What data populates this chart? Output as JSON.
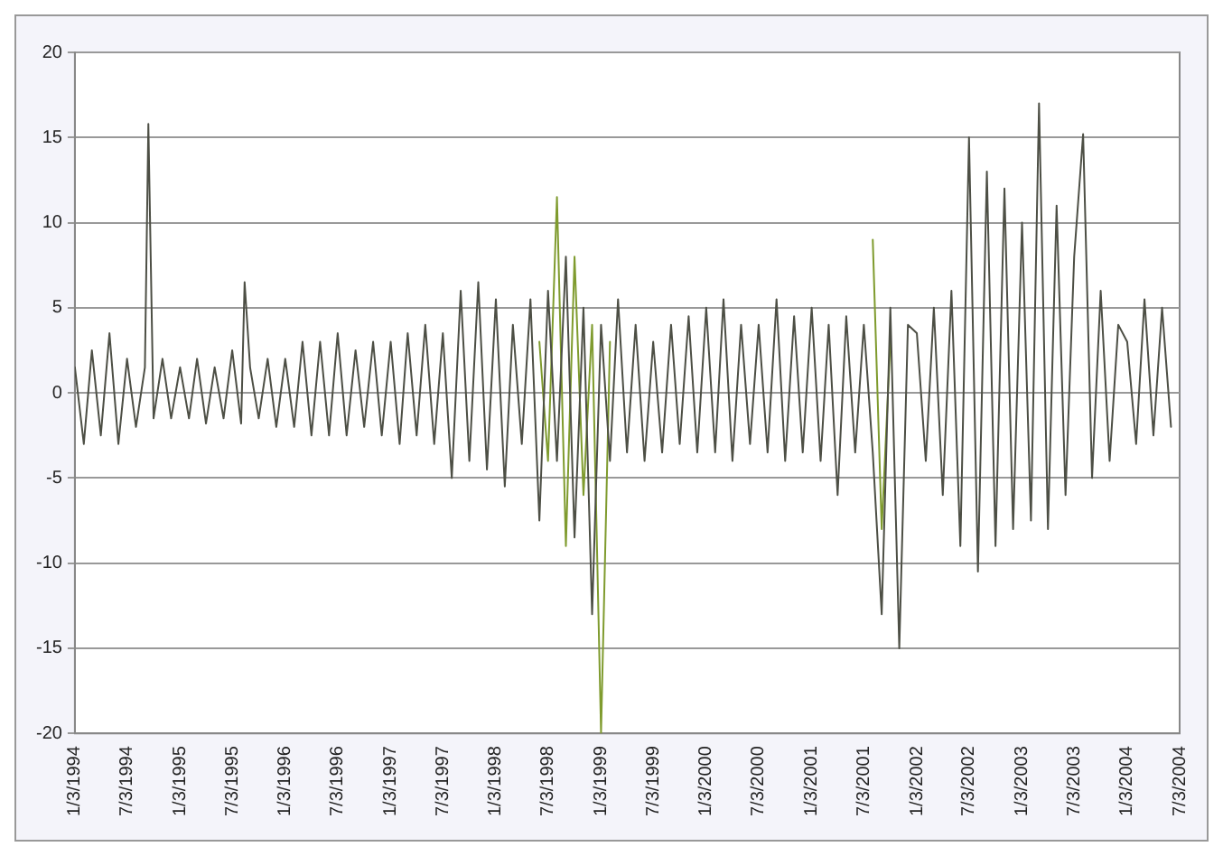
{
  "chart_data": {
    "type": "line",
    "xlim": [
      "1994-01-03",
      "2004-07-03"
    ],
    "ylim": [
      -20,
      20
    ],
    "yticks": [
      -20,
      -15,
      -10,
      -5,
      0,
      5,
      10,
      15,
      20
    ],
    "grid": "y",
    "legend": false,
    "marker": "none",
    "line_style": "solid",
    "xticks": [
      {
        "value": "1994-01-03",
        "label": "1/3/1994"
      },
      {
        "value": "1994-07-03",
        "label": "7/3/1994"
      },
      {
        "value": "1995-01-03",
        "label": "1/3/1995"
      },
      {
        "value": "1995-07-03",
        "label": "7/3/1995"
      },
      {
        "value": "1996-01-03",
        "label": "1/3/1996"
      },
      {
        "value": "1996-07-03",
        "label": "7/3/1996"
      },
      {
        "value": "1997-01-03",
        "label": "1/3/1997"
      },
      {
        "value": "1997-07-03",
        "label": "7/3/1997"
      },
      {
        "value": "1998-01-03",
        "label": "1/3/1998"
      },
      {
        "value": "1998-07-03",
        "label": "7/3/1998"
      },
      {
        "value": "1999-01-03",
        "label": "1/3/1999"
      },
      {
        "value": "1999-07-03",
        "label": "7/3/1999"
      },
      {
        "value": "2000-01-03",
        "label": "1/3/2000"
      },
      {
        "value": "2000-07-03",
        "label": "7/3/2000"
      },
      {
        "value": "2001-01-03",
        "label": "1/3/2001"
      },
      {
        "value": "2001-07-03",
        "label": "7/3/2001"
      },
      {
        "value": "2002-01-03",
        "label": "1/3/2002"
      },
      {
        "value": "2002-07-03",
        "label": "7/3/2002"
      },
      {
        "value": "2003-01-03",
        "label": "1/3/2003"
      },
      {
        "value": "2003-07-03",
        "label": "7/3/2003"
      },
      {
        "value": "2004-01-03",
        "label": "1/3/2004"
      },
      {
        "value": "2004-07-03",
        "label": "7/3/2004"
      }
    ],
    "series": [
      {
        "color": "#4d4f45",
        "x": [
          "1994-01-03",
          "1994-02-03",
          "1994-03-03",
          "1994-04-03",
          "1994-05-03",
          "1994-06-03",
          "1994-07-03",
          "1994-08-03",
          "1994-09-03",
          "1994-09-15",
          "1994-10-03",
          "1994-11-03",
          "1994-12-03",
          "1995-01-03",
          "1995-02-03",
          "1995-03-03",
          "1995-04-03",
          "1995-05-03",
          "1995-06-03",
          "1995-07-03",
          "1995-08-03",
          "1995-08-15",
          "1995-09-03",
          "1995-10-03",
          "1995-11-03",
          "1995-12-03",
          "1996-01-03",
          "1996-02-03",
          "1996-03-03",
          "1996-04-03",
          "1996-05-03",
          "1996-06-03",
          "1996-07-03",
          "1996-08-03",
          "1996-09-03",
          "1996-10-03",
          "1996-11-03",
          "1996-12-03",
          "1997-01-03",
          "1997-02-03",
          "1997-03-03",
          "1997-04-03",
          "1997-05-03",
          "1997-06-03",
          "1997-07-03",
          "1997-08-03",
          "1997-09-03",
          "1997-10-03",
          "1997-11-03",
          "1997-12-03",
          "1998-01-03",
          "1998-02-03",
          "1998-03-03",
          "1998-04-03",
          "1998-05-03",
          "1998-06-03",
          "1998-07-03",
          "1998-08-03",
          "1998-09-03",
          "1998-10-03",
          "1998-11-03",
          "1998-12-03",
          "1999-01-03",
          "1999-02-03",
          "1999-03-03",
          "1999-04-03",
          "1999-05-03",
          "1999-06-03",
          "1999-07-03",
          "1999-08-03",
          "1999-09-03",
          "1999-10-03",
          "1999-11-03",
          "1999-12-03",
          "2000-01-03",
          "2000-02-03",
          "2000-03-03",
          "2000-04-03",
          "2000-05-03",
          "2000-06-03",
          "2000-07-03",
          "2000-08-03",
          "2000-09-03",
          "2000-10-03",
          "2000-11-03",
          "2000-12-03",
          "2001-01-03",
          "2001-02-03",
          "2001-03-03",
          "2001-04-03",
          "2001-05-03",
          "2001-06-03",
          "2001-07-03",
          "2001-08-03",
          "2001-09-03",
          "2001-10-03",
          "2001-11-03",
          "2001-12-03",
          "2002-01-03",
          "2002-02-03",
          "2002-03-03",
          "2002-04-03",
          "2002-05-03",
          "2002-06-03",
          "2002-07-03",
          "2002-08-03",
          "2002-09-03",
          "2002-10-03",
          "2002-11-03",
          "2002-12-03",
          "2003-01-03",
          "2003-02-03",
          "2003-03-03",
          "2003-04-03",
          "2003-05-03",
          "2003-06-03",
          "2003-07-03",
          "2003-08-03",
          "2003-09-03",
          "2003-10-03",
          "2003-11-03",
          "2003-12-03",
          "2004-01-03",
          "2004-02-03",
          "2004-03-03",
          "2004-04-03",
          "2004-05-03",
          "2004-06-03"
        ],
        "values": [
          1.5,
          -3,
          2.5,
          -2.5,
          3.5,
          -3,
          2,
          -2,
          1.5,
          15.8,
          -1.5,
          2,
          -1.5,
          1.5,
          -1.5,
          2,
          -1.8,
          1.5,
          -1.5,
          2.5,
          -1.8,
          6.5,
          1.5,
          -1.5,
          2,
          -2,
          2,
          -2,
          3,
          -2.5,
          3,
          -2.5,
          3.5,
          -2.5,
          2.5,
          -2,
          3,
          -2.5,
          3,
          -3,
          3.5,
          -2.5,
          4,
          -3,
          3.5,
          -5,
          6,
          -4,
          6.5,
          -4.5,
          5.5,
          -5.5,
          4,
          -3,
          5.5,
          -7.5,
          6,
          -4,
          8,
          -8.5,
          5,
          -13,
          4,
          -4,
          5.5,
          -3.5,
          4,
          -4,
          3,
          -3.5,
          4,
          -3,
          4.5,
          -3.5,
          5,
          -3.5,
          5.5,
          -4,
          4,
          -3,
          4,
          -3.5,
          5.5,
          -4,
          4.5,
          -3.5,
          5,
          -4,
          4,
          -6,
          4.5,
          -3.5,
          4,
          -3.5,
          -13,
          5,
          -15,
          4,
          3.5,
          -4,
          5,
          -6,
          6,
          -9,
          15,
          -10.5,
          13,
          -9,
          12,
          -8,
          10,
          -7.5,
          17,
          -8,
          11,
          -6,
          8,
          15.2,
          -5,
          6,
          -4,
          4,
          3,
          -3,
          5.5,
          -2.5,
          5,
          -2
        ]
      },
      {
        "color": "#7f9b2e",
        "x": [
          "1998-06-03",
          "1998-07-03",
          "1998-08-03",
          "1998-09-03",
          "1998-10-03",
          "1998-11-03",
          "1998-12-03",
          "1999-01-03",
          "1999-02-03",
          "2000-01-03",
          "2001-08-03",
          "2001-09-03",
          "2001-10-03"
        ],
        "values": [
          3,
          -4,
          11.5,
          -9,
          8,
          -6,
          4,
          -20,
          3,
          null,
          9,
          -8,
          3
        ]
      }
    ]
  }
}
